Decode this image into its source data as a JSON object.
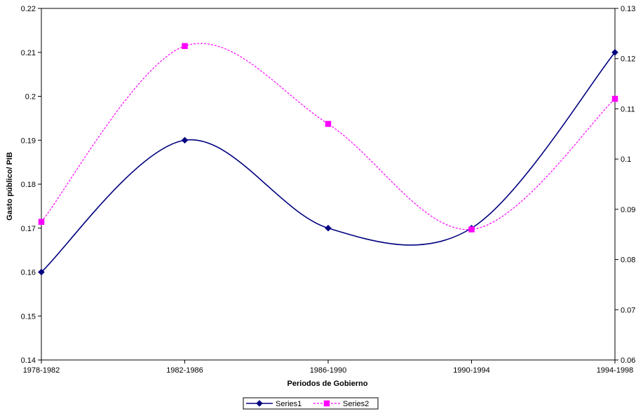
{
  "chart_data": {
    "type": "line",
    "title": "",
    "xlabel": "Periodos de Gobierno",
    "ylabel": "Gasto público/ PIB",
    "ylabel_right": "",
    "categories": [
      "1978-1982",
      "1982-1986",
      "1986-1990",
      "1990-1994",
      "1994-1998"
    ],
    "y_ticks": [
      "0.14",
      "0.15",
      "0.16",
      "0.17",
      "0.18",
      "0.19",
      "0.2",
      "0.21",
      "0.22"
    ],
    "y2_ticks": [
      "0.06",
      "0.07",
      "0.08",
      "0.09",
      "0.1",
      "0.11",
      "0.12",
      "0.13"
    ],
    "ylim": [
      0.14,
      0.22
    ],
    "y2lim": [
      0.06,
      0.13
    ],
    "grid": false,
    "legend_position": "bottom",
    "series": [
      {
        "name": "Series1",
        "axis": "left",
        "values": [
          0.16,
          0.19,
          0.17,
          0.17,
          0.21
        ],
        "color": "#000080",
        "line_style": "solid",
        "marker": "diamond"
      },
      {
        "name": "Series2",
        "axis": "right",
        "values": [
          0.0875,
          0.1225,
          0.107,
          0.086,
          0.112
        ],
        "color": "#FF00FF",
        "line_style": "dashed",
        "marker": "square"
      }
    ]
  }
}
